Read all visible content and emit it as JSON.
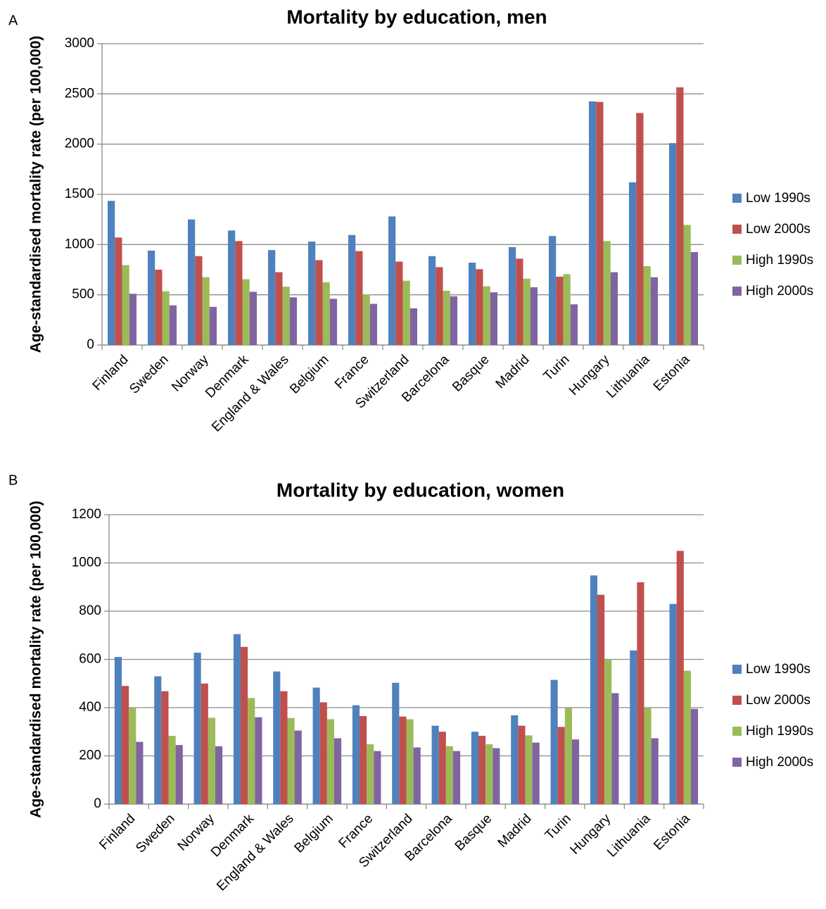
{
  "chart_data": [
    {
      "type": "bar",
      "panel": "A",
      "title": "Mortality by education, men",
      "y_label": "Age-standardised mortality rate (per 100,000)",
      "categories": [
        "Finland",
        "Sweden",
        "Norway",
        "Denmark",
        "England & Wales",
        "Belgium",
        "France",
        "Switzerland",
        "Barcelona",
        "Basque",
        "Madrid",
        "Turin",
        "Hungary",
        "Lithuania",
        "Estonia"
      ],
      "series": [
        {
          "name": "Low 1990s",
          "color": "#4f81bd",
          "values": [
            1435,
            940,
            1250,
            1140,
            945,
            1030,
            1095,
            1280,
            885,
            820,
            975,
            1085,
            2425,
            1620,
            2010
          ]
        },
        {
          "name": "Low 2000s",
          "color": "#c0504d",
          "values": [
            1070,
            750,
            885,
            1035,
            725,
            845,
            935,
            830,
            775,
            755,
            860,
            680,
            2420,
            2310,
            2565
          ]
        },
        {
          "name": "High 1990s",
          "color": "#9bbb59",
          "values": [
            795,
            535,
            675,
            655,
            580,
            625,
            505,
            640,
            540,
            585,
            660,
            705,
            1035,
            785,
            1195
          ]
        },
        {
          "name": "High 2000s",
          "color": "#8064a2",
          "values": [
            510,
            395,
            380,
            530,
            475,
            460,
            410,
            365,
            485,
            525,
            575,
            405,
            725,
            675,
            925
          ]
        }
      ],
      "ylim": [
        0,
        3000
      ],
      "yticks": [
        0,
        500,
        1000,
        1500,
        2000,
        2500,
        3000
      ],
      "grid": true,
      "legend": "right"
    },
    {
      "type": "bar",
      "panel": "B",
      "title": "Mortality by education, women",
      "y_label": "Age-standardised mortality rate (per 100,000)",
      "categories": [
        "Finland",
        "Sweden",
        "Norway",
        "Denmark",
        "England & Wales",
        "Belgium",
        "France",
        "Switzerland",
        "Barcelona",
        "Basque",
        "Madrid",
        "Turin",
        "Hungary",
        "Lithuania",
        "Estonia"
      ],
      "series": [
        {
          "name": "Low 1990s",
          "color": "#4f81bd",
          "values": [
            610,
            530,
            628,
            705,
            550,
            483,
            410,
            503,
            325,
            300,
            368,
            515,
            948,
            637,
            830
          ]
        },
        {
          "name": "Low 2000s",
          "color": "#c0504d",
          "values": [
            490,
            468,
            500,
            652,
            468,
            422,
            365,
            363,
            300,
            283,
            325,
            320,
            868,
            920,
            1050
          ]
        },
        {
          "name": "High 1990s",
          "color": "#9bbb59",
          "values": [
            400,
            283,
            358,
            440,
            357,
            352,
            248,
            352,
            240,
            248,
            285,
            398,
            598,
            400,
            553
          ]
        },
        {
          "name": "High 2000s",
          "color": "#8064a2",
          "values": [
            258,
            245,
            240,
            360,
            305,
            273,
            220,
            235,
            220,
            232,
            255,
            268,
            460,
            273,
            395
          ]
        }
      ],
      "ylim": [
        0,
        1200
      ],
      "yticks": [
        0,
        200,
        400,
        600,
        800,
        1000,
        1200
      ],
      "grid": true,
      "legend": "right"
    }
  ]
}
